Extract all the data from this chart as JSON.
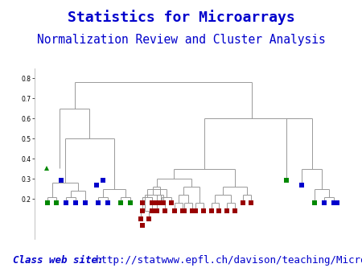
{
  "title1": "Statistics for Microarrays",
  "title2": "Normalization Review and Cluster Analysis",
  "footer_label": "Class web site:",
  "footer_url": "http://statwww.epfl.ch/davison/teaching/Microarrays/",
  "title1_color": "#0000CC",
  "title2_color": "#0000CC",
  "footer_color": "#0000CC",
  "bg_color": "#FFFFFF",
  "dendro_color": "#999999",
  "ms": 5,
  "blue": "#0000CC",
  "green": "#008800",
  "red": "#990000",
  "ytick_labels": [
    "0.8",
    "0.7",
    "0.6",
    "0.5",
    "0.4",
    "0.3",
    "0.2"
  ],
  "ytick_vals": [
    0.8,
    0.7,
    0.6,
    0.5,
    0.4,
    0.3,
    0.2
  ]
}
